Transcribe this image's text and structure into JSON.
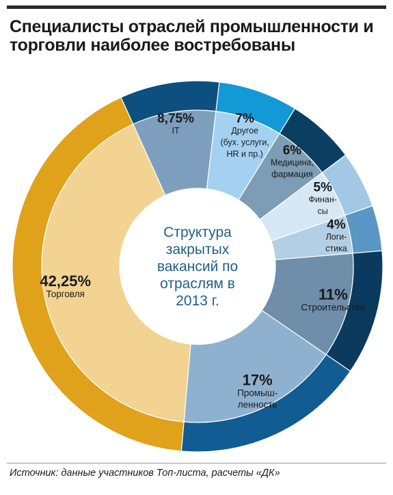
{
  "title_lines": [
    "Специалисты отраслей промышленности и",
    "торговли наиболее востребованы"
  ],
  "source": "Источник: данные участников Топ-листа, расчеты «ДК»",
  "chart_data": {
    "type": "pie",
    "variant": "donut",
    "title": "Специалисты отраслей промышленности и торговли наиболее востребованы",
    "center_text": [
      "Структура",
      "закрытых",
      "вакансий по",
      "отраслям в",
      "2013 г."
    ],
    "slices": [
      {
        "label": "Торговля",
        "value": 42.25,
        "pct_label": "42,25%",
        "name_lines": [
          "Торговля"
        ],
        "color_outer": "#e0a21a",
        "color_inner": "#f2d391"
      },
      {
        "label": "IT",
        "value": 8.75,
        "pct_label": "8,75%",
        "name_lines": [
          "IT"
        ],
        "color_outer": "#0d4f7e",
        "color_inner": "#7d9fbd"
      },
      {
        "label": "Другое (бух. услуги, HR и пр.)",
        "value": 7,
        "pct_label": "7%",
        "name_lines": [
          "Другое",
          "(бух. услуги,",
          "HR и пр.)"
        ],
        "color_outer": "#1399d6",
        "color_inner": "#a4d1f1"
      },
      {
        "label": "Медицина, фармация",
        "value": 6,
        "pct_label": "6%",
        "name_lines": [
          "Медицина,",
          "фармация"
        ],
        "color_outer": "#0a3f61",
        "color_inner": "#7c9db5"
      },
      {
        "label": "Финансы",
        "value": 5,
        "pct_label": "5%",
        "name_lines": [
          "Финан-",
          "сы"
        ],
        "color_outer": "#a3c8e6",
        "color_inner": "#d6e8f5"
      },
      {
        "label": "Логистика",
        "value": 4,
        "pct_label": "4%",
        "name_lines": [
          "Логи-",
          "стика"
        ],
        "color_outer": "#5b97c5",
        "color_inner": "#b3cfe5"
      },
      {
        "label": "Строительство",
        "value": 11,
        "pct_label": "11%",
        "name_lines": [
          "Строительство"
        ],
        "color_outer": "#0a3a5e",
        "color_inner": "#6e8eaa"
      },
      {
        "label": "Промышленность",
        "value": 17,
        "pct_label": "17%",
        "name_lines": [
          "Промыш-",
          "ленность"
        ],
        "color_outer": "#115c92",
        "color_inner": "#8fb1d0"
      }
    ]
  }
}
